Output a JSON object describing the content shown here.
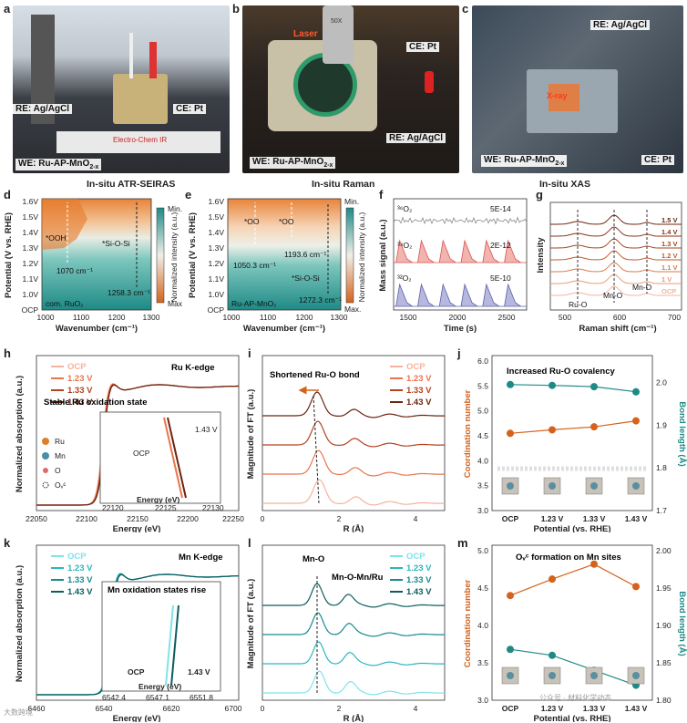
{
  "panel_labels": {
    "a": "a",
    "b": "b",
    "c": "c",
    "d": "d",
    "e": "e",
    "f": "f",
    "g": "g",
    "h": "h",
    "i": "i",
    "j": "j",
    "k": "k",
    "l": "l",
    "m": "m"
  },
  "photos": {
    "a": {
      "re": "RE: Ag/AgCl",
      "ce": "CE: Pt",
      "we": "WE: Ru-AP-MnO",
      "we_sub": "2-x",
      "device": "Electro-Chem IR"
    },
    "b": {
      "laser": "Laser",
      "ce": "CE: Pt",
      "re": "RE: Ag/AgCl",
      "we": "WE: Ru-AP-MnO",
      "we_sub": "2-x",
      "objective": "50X"
    },
    "c": {
      "re": "RE: Ag/AgCl",
      "xray": "X-ray",
      "we": "WE: Ru-AP-MnO",
      "we_sub": "2-x",
      "ce": "CE: Pt"
    }
  },
  "section_titles": {
    "d": "In-situ ATR-SEIRAS",
    "e": "In-situ Raman",
    "g": "In-situ XAS"
  },
  "panel_d": {
    "ylabel": "Potential (V vs. RHE)",
    "xlabel": "Wavenumber (cm⁻¹)",
    "yticks": [
      "1.6V",
      "1.5V",
      "1.4V",
      "1.3V",
      "1.2V",
      "1.1V",
      "1.0V",
      "OCP"
    ],
    "xticks": [
      "1000",
      "1100",
      "1200",
      "1300"
    ],
    "cbar_label": "Normalized intensity (a.u.)",
    "cbar_min": "Min.",
    "cbar_max": "Max.",
    "annotations": {
      "ooh": "*OOH",
      "sios": "*Si-O-Si",
      "w1": "1070 cm⁻¹",
      "w2": "1258.3 cm⁻¹",
      "sample": "com. RuO₂"
    }
  },
  "panel_e": {
    "ylabel": "Potential (V vs. RHE)",
    "xlabel": "Wavenumber (cm⁻¹)",
    "yticks": [
      "1.6V",
      "1.5V",
      "1.4V",
      "1.3V",
      "1.2V",
      "1.1V",
      "1.0V",
      "OCP"
    ],
    "xticks": [
      "1000",
      "1100",
      "1200",
      "1300"
    ],
    "cbar_label": "Normalized intensity (a.u.)",
    "cbar_min": "Min.",
    "cbar_max": "Max.",
    "annotations": {
      "oo1": "*OO",
      "oo2": "*OO",
      "w1": "1050.3 cm⁻¹",
      "w2": "1193.6 cm⁻¹",
      "sios": "*Si-O-Si",
      "w3": "1272.3 cm⁻¹",
      "sample": "Ru-AP-MnO₂"
    }
  },
  "panel_f": {
    "ylabel": "Mass signal (a.u.)",
    "xlabel": "Time (s)",
    "xticks": [
      "1500",
      "2000",
      "2500"
    ],
    "traces": [
      {
        "label": "³⁶O₂",
        "scale": "5E-14",
        "color": "#888888"
      },
      {
        "label": "³⁴O₂",
        "scale": "2E-12",
        "color": "#d9534f"
      },
      {
        "label": "³²O₂",
        "scale": "5E-10",
        "color": "#5b5ea6"
      }
    ]
  },
  "panel_g": {
    "ylabel": "Intensity",
    "xlabel": "Raman shift (cm⁻¹)",
    "xticks": [
      "500",
      "600",
      "700"
    ],
    "labels": [
      "1.5 V",
      "1.4 V",
      "1.3 V",
      "1.2 V",
      "1.1 V",
      "1 V",
      "OCP"
    ],
    "annotations": {
      "ruo": "Ru-O",
      "mno1": "Mn-O",
      "mno2": "Mn-O"
    }
  },
  "panel_h": {
    "title": "Ru K-edge",
    "ylabel": "Normalized absorption (a.u.)",
    "xlabel": "Energy (eV)",
    "xticks": [
      "22050",
      "22100",
      "22150",
      "22200",
      "22250"
    ],
    "legend": [
      "OCP",
      "1.23 V",
      "1.33 V",
      "1.43 V"
    ],
    "inset_title": "Stable Ru oxidation state",
    "inset_xticks": [
      "22120",
      "22125",
      "22130"
    ],
    "inset_xlabel": "Energy (eV)",
    "inset_ocp": "OCP",
    "inset_v": "1.43 V",
    "species": [
      "Ru",
      "Mn",
      "O",
      "Oᵥᶜ"
    ]
  },
  "panel_i": {
    "ylabel": "Magnitude of FT (a.u.)",
    "xlabel": "R (Å)",
    "xticks": [
      "0",
      "2",
      "4"
    ],
    "legend": [
      "OCP",
      "1.23 V",
      "1.33 V",
      "1.43 V"
    ],
    "annotation": "Shortened Ru-O bond"
  },
  "panel_j": {
    "title": "Increased Ru-O covalency",
    "ylabel": "Coordination number",
    "ylabel2": "Bond length (Å)",
    "xlabel": "Potential (vs. RHE)",
    "categories": [
      "OCP",
      "1.23 V",
      "1.33 V",
      "1.43 V"
    ],
    "yticks": [
      "3.0",
      "3.5",
      "4.0",
      "4.5",
      "5.0",
      "5.5",
      "6.0"
    ],
    "yticks2": [
      "1.7",
      "1.8",
      "1.9",
      "2.0"
    ]
  },
  "panel_k": {
    "title": "Mn K-edge",
    "ylabel": "Normalized absorption (a.u.)",
    "xlabel": "Energy (eV)",
    "xticks": [
      "6460",
      "6540",
      "6620",
      "6700"
    ],
    "legend": [
      "OCP",
      "1.23 V",
      "1.33 V",
      "1.43 V"
    ],
    "inset_title": "Mn oxidation states rise",
    "inset_xticks": [
      "6542.4",
      "6547.1",
      "6551.8"
    ],
    "inset_xlabel": "Energy (eV)",
    "inset_ocp": "OCP",
    "inset_v": "1.43 V"
  },
  "panel_l": {
    "ylabel": "Magnitude of FT (a.u.)",
    "xlabel": "R (Å)",
    "xticks": [
      "0",
      "2",
      "4"
    ],
    "legend": [
      "OCP",
      "1.23 V",
      "1.33 V",
      "1.43 V"
    ],
    "annotation1": "Mn-O",
    "annotation2": "Mn-O-Mn/Ru"
  },
  "panel_m": {
    "title": "Oᵥᶜ formation on Mn sites",
    "ylabel": "Coordination number",
    "ylabel2": "Bond length (Å)",
    "xlabel": "Potential (vs. RHE)",
    "categories": [
      "OCP",
      "1.23 V",
      "1.33 V",
      "1.43 V"
    ],
    "yticks": [
      "3.0",
      "3.5",
      "4.0",
      "4.5",
      "5.0"
    ],
    "yticks2": [
      "1.80",
      "1.85",
      "1.90",
      "1.95",
      "2.00"
    ]
  },
  "watermark": {
    "left": "大数跨境",
    "right": "公众号 · 材料化学动态"
  },
  "colors": {
    "ocp": "#f4b39c",
    "v123": "#e8754f",
    "v133": "#b5431f",
    "v143": "#6b2512",
    "mn_ocp": "#7fe3e8",
    "mn_123": "#2bb6bf",
    "mn_133": "#168a8f",
    "mn_143": "#0d5c5e",
    "orange": "#d4621b",
    "teal": "#1e8a86"
  },
  "chart_data": [
    {
      "panel": "j",
      "type": "line",
      "categories": [
        "OCP",
        "1.23 V",
        "1.33 V",
        "1.43 V"
      ],
      "series": [],
      "left_values": [
        4.55,
        4.62,
        4.68,
        4.8
      ],
      "right_values": [
        1.995,
        1.993,
        1.99,
        1.978
      ],
      "ylim": [
        3.0,
        6.0
      ],
      "ylim2": [
        1.7,
        2.05
      ]
    },
    {
      "panel": "m",
      "type": "line",
      "categories": [
        "OCP",
        "1.23 V",
        "1.33 V",
        "1.43 V"
      ],
      "series": [],
      "left_values": [
        4.4,
        4.62,
        4.82,
        4.52
      ],
      "right_values": [
        1.868,
        1.86,
        1.84,
        1.82
      ],
      "ylim": [
        3.0,
        5.0
      ],
      "ylim2": [
        1.8,
        2.0
      ]
    },
    {
      "panel": "f",
      "type": "line",
      "x_range": [
        1400,
        2750
      ],
      "peak_times": [
        1480,
        1700,
        1920,
        2140,
        2360,
        2580
      ]
    }
  ]
}
